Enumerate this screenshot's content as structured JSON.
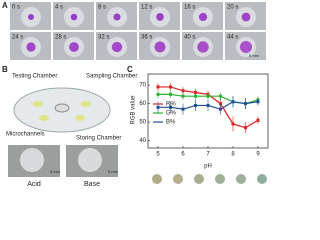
{
  "panel_a": {
    "label": "A",
    "times": [
      "0 s",
      "4 s",
      "8 s",
      "12 s",
      "16 s",
      "20 s",
      "24 s",
      "28 s",
      "32 s",
      "36 s",
      "40 s",
      "44 s"
    ],
    "scale_bar": "5 mm"
  },
  "panel_b": {
    "label": "B",
    "testing": "Testing Chamber",
    "sampling": "Sampling Chamber",
    "microchannels": "Microchannels",
    "storing": "Storing Chamber",
    "acid": "Acid",
    "base": "Base",
    "scale_bar_acid": "5 mm",
    "scale_bar_base": "5 mm"
  },
  "chart_data": {
    "type": "line",
    "label": "C",
    "ylabel": "RGB value",
    "xlabel": "pH",
    "x": [
      5,
      5.5,
      6,
      6.5,
      7,
      7.5,
      8,
      8.5,
      9
    ],
    "series": [
      {
        "name": "R%",
        "color": "#e02020",
        "values": [
          69,
          69,
          67,
          66,
          65,
          60,
          49,
          47,
          51
        ],
        "errors": [
          2,
          2,
          2,
          2,
          2,
          3,
          4,
          3,
          2
        ]
      },
      {
        "name": "G%",
        "color": "#30b030",
        "values": [
          65,
          65,
          64,
          64,
          64,
          64,
          61,
          60,
          62
        ],
        "errors": [
          2,
          2,
          2,
          2,
          2,
          2,
          3,
          3,
          2
        ]
      },
      {
        "name": "B%",
        "color": "#1f4e9a",
        "values": [
          58,
          58,
          57,
          59,
          59,
          57,
          61,
          60,
          61
        ],
        "errors": [
          3,
          3,
          3,
          3,
          3,
          3,
          3,
          3,
          2
        ]
      }
    ],
    "xlim": [
      4.6,
      9.4
    ],
    "ylim": [
      36,
      76
    ],
    "xticks": [
      5,
      6,
      7,
      8,
      9
    ],
    "yticks": [
      40,
      50,
      60,
      70
    ],
    "swatch_colors": [
      "#b3ab88",
      "#b5ad8c",
      "#a9ad8e",
      "#9fae96",
      "#9db19d",
      "#8eae9e"
    ]
  }
}
